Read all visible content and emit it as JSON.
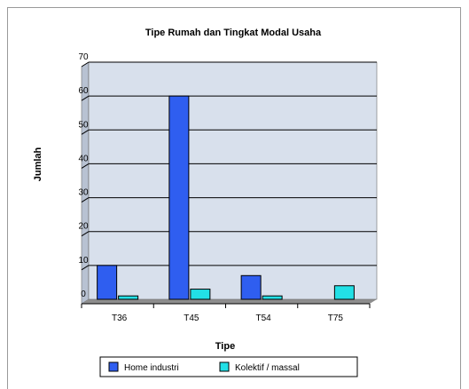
{
  "chart_data": {
    "type": "bar",
    "title": "Tipe Rumah dan Tingkat Modal Usaha",
    "xlabel": "Tipe",
    "ylabel": "Jumlah",
    "categories": [
      "T36",
      "T45",
      "T54",
      "T75"
    ],
    "series": [
      {
        "name": "Home industri",
        "values": [
          10,
          60,
          7,
          0
        ],
        "color": "#2f5ef0"
      },
      {
        "name": "Kolektif / massal",
        "values": [
          1,
          3,
          1,
          4
        ],
        "color": "#22e0e6"
      }
    ],
    "ylim": [
      0,
      70
    ],
    "yticks": [
      0,
      10,
      20,
      30,
      40,
      50,
      60,
      70
    ],
    "grid": true,
    "plot_background": "#d8e0ec",
    "legend_position": "bottom"
  }
}
